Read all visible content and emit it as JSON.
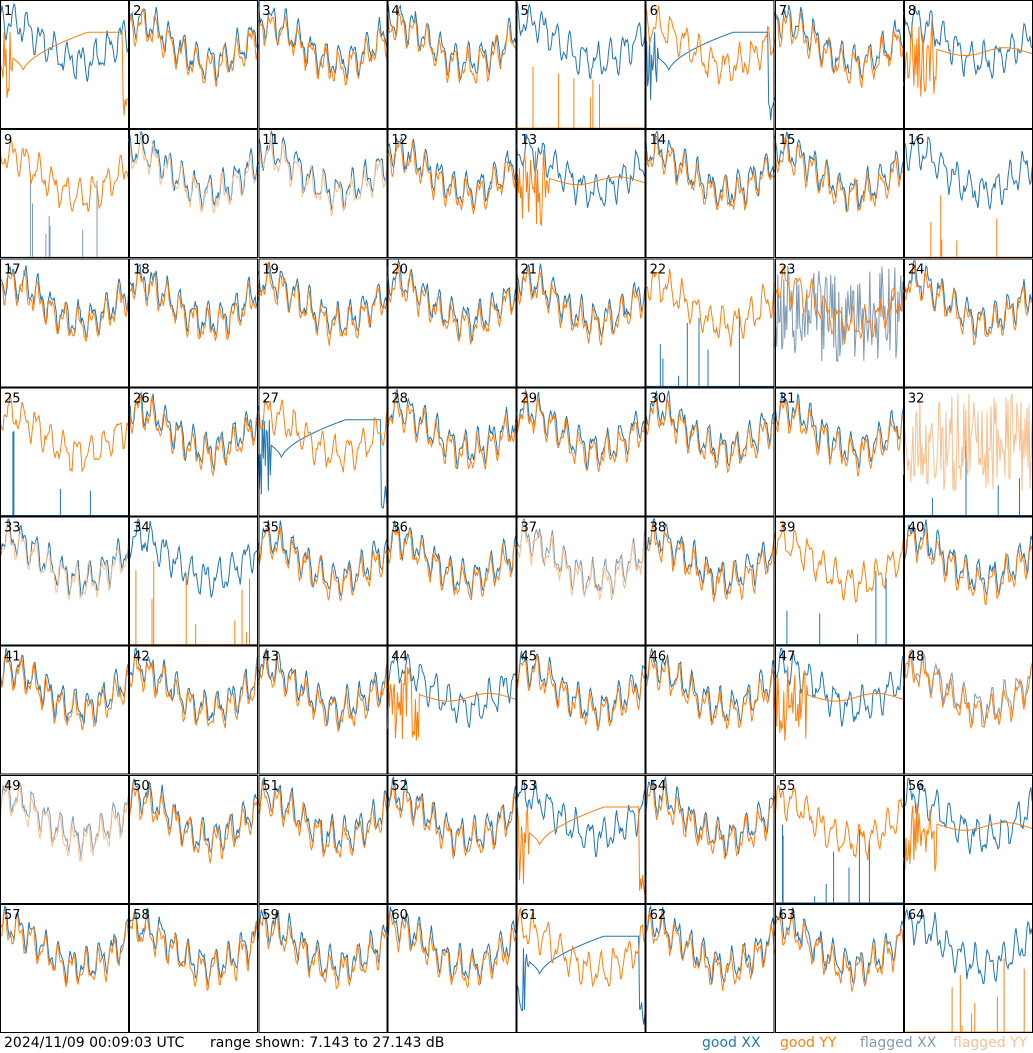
{
  "footer": {
    "timestamp": "2024/11/09 00:09:03 UTC",
    "range_text": "range shown: 7.143 to 27.143 dB"
  },
  "legend": [
    {
      "key": "good_xx",
      "label": "good XX",
      "color": "#1f77b4"
    },
    {
      "key": "good_yy",
      "label": "good YY",
      "color": "#ff7f0e"
    },
    {
      "key": "flagged_xx",
      "label": "flagged XX",
      "color": "#7f9bb5"
    },
    {
      "key": "flagged_yy",
      "label": "flagged YY",
      "color": "#f9c08f"
    }
  ],
  "chart_data": {
    "type": "line",
    "ylim": [
      7.143,
      27.143
    ],
    "yunit": "dB",
    "grid": false,
    "legend_position": "bottom-right",
    "panels": [
      {
        "label": "1",
        "xx": "good",
        "yy": "good",
        "yy_shape": "dip"
      },
      {
        "label": "2",
        "xx": "good",
        "yy": "good"
      },
      {
        "label": "3",
        "xx": "good",
        "yy": "good"
      },
      {
        "label": "4",
        "xx": "good",
        "yy": "good"
      },
      {
        "label": "5",
        "xx": "good",
        "yy": "good",
        "yy_shape": "spikes"
      },
      {
        "label": "6",
        "xx": "good",
        "yy": "good",
        "xx_shape": "dip"
      },
      {
        "label": "7",
        "xx": "good",
        "yy": "good"
      },
      {
        "label": "8",
        "xx": "good",
        "yy": "good",
        "yy_shape": "flat"
      },
      {
        "label": "9",
        "xx": "flagged",
        "yy": "good",
        "xx_shape": "spikes"
      },
      {
        "label": "10",
        "xx": "good",
        "yy": "flagged"
      },
      {
        "label": "11",
        "xx": "good",
        "yy": "flagged"
      },
      {
        "label": "12",
        "xx": "good",
        "yy": "good"
      },
      {
        "label": "13",
        "xx": "good",
        "yy": "good",
        "yy_shape": "flat"
      },
      {
        "label": "14",
        "xx": "good",
        "yy": "good"
      },
      {
        "label": "15",
        "xx": "good",
        "yy": "good"
      },
      {
        "label": "16",
        "xx": "good",
        "yy": "good",
        "yy_shape": "spikes"
      },
      {
        "label": "17",
        "xx": "good",
        "yy": "good"
      },
      {
        "label": "18",
        "xx": "good",
        "yy": "good"
      },
      {
        "label": "19",
        "xx": "good",
        "yy": "good"
      },
      {
        "label": "20",
        "xx": "good",
        "yy": "good"
      },
      {
        "label": "21",
        "xx": "good",
        "yy": "good"
      },
      {
        "label": "22",
        "xx": "good",
        "yy": "good",
        "xx_shape": "spikes"
      },
      {
        "label": "23",
        "xx": "flagged",
        "yy": "good",
        "xx_shape": "noisy"
      },
      {
        "label": "24",
        "xx": "good",
        "yy": "good"
      },
      {
        "label": "25",
        "xx": "good",
        "yy": "good",
        "xx_shape": "spikes"
      },
      {
        "label": "26",
        "xx": "good",
        "yy": "good"
      },
      {
        "label": "27",
        "xx": "good",
        "yy": "good",
        "xx_shape": "dip"
      },
      {
        "label": "28",
        "xx": "good",
        "yy": "good"
      },
      {
        "label": "29",
        "xx": "good",
        "yy": "good"
      },
      {
        "label": "30",
        "xx": "good",
        "yy": "good"
      },
      {
        "label": "31",
        "xx": "good",
        "yy": "good"
      },
      {
        "label": "32",
        "xx": "good",
        "yy": "flagged",
        "xx_shape": "spikes",
        "yy_shape": "noisy"
      },
      {
        "label": "33",
        "xx": "good",
        "yy": "flagged"
      },
      {
        "label": "34",
        "xx": "good",
        "yy": "good",
        "yy_shape": "spikes"
      },
      {
        "label": "35",
        "xx": "good",
        "yy": "good"
      },
      {
        "label": "36",
        "xx": "good",
        "yy": "good"
      },
      {
        "label": "37",
        "xx": "flagged",
        "yy": "flagged"
      },
      {
        "label": "38",
        "xx": "good",
        "yy": "good"
      },
      {
        "label": "39",
        "xx": "good",
        "yy": "good",
        "xx_shape": "spikes"
      },
      {
        "label": "40",
        "xx": "good",
        "yy": "good"
      },
      {
        "label": "41",
        "xx": "good",
        "yy": "good"
      },
      {
        "label": "42",
        "xx": "good",
        "yy": "good"
      },
      {
        "label": "43",
        "xx": "good",
        "yy": "good"
      },
      {
        "label": "44",
        "xx": "good",
        "yy": "good",
        "yy_shape": "flat"
      },
      {
        "label": "45",
        "xx": "good",
        "yy": "good"
      },
      {
        "label": "46",
        "xx": "good",
        "yy": "good"
      },
      {
        "label": "47",
        "xx": "good",
        "yy": "good",
        "yy_shape": "flat"
      },
      {
        "label": "48",
        "xx": "flagged",
        "yy": "good"
      },
      {
        "label": "49",
        "xx": "flagged",
        "yy": "flagged"
      },
      {
        "label": "50",
        "xx": "good",
        "yy": "good"
      },
      {
        "label": "51",
        "xx": "good",
        "yy": "good"
      },
      {
        "label": "52",
        "xx": "good",
        "yy": "good"
      },
      {
        "label": "53",
        "xx": "good",
        "yy": "good",
        "yy_shape": "dip"
      },
      {
        "label": "54",
        "xx": "good",
        "yy": "good"
      },
      {
        "label": "55",
        "xx": "good",
        "yy": "good",
        "xx_shape": "spikes"
      },
      {
        "label": "56",
        "xx": "good",
        "yy": "good",
        "yy_shape": "flat"
      },
      {
        "label": "57",
        "xx": "good",
        "yy": "good"
      },
      {
        "label": "58",
        "xx": "good",
        "yy": "good"
      },
      {
        "label": "59",
        "xx": "good",
        "yy": "good"
      },
      {
        "label": "60",
        "xx": "good",
        "yy": "good"
      },
      {
        "label": "61",
        "xx": "good",
        "yy": "good",
        "xx_shape": "dip"
      },
      {
        "label": "62",
        "xx": "good",
        "yy": "good"
      },
      {
        "label": "63",
        "xx": "good",
        "yy": "good"
      },
      {
        "label": "64",
        "xx": "good",
        "yy": "good",
        "yy_shape": "spikes"
      }
    ]
  }
}
